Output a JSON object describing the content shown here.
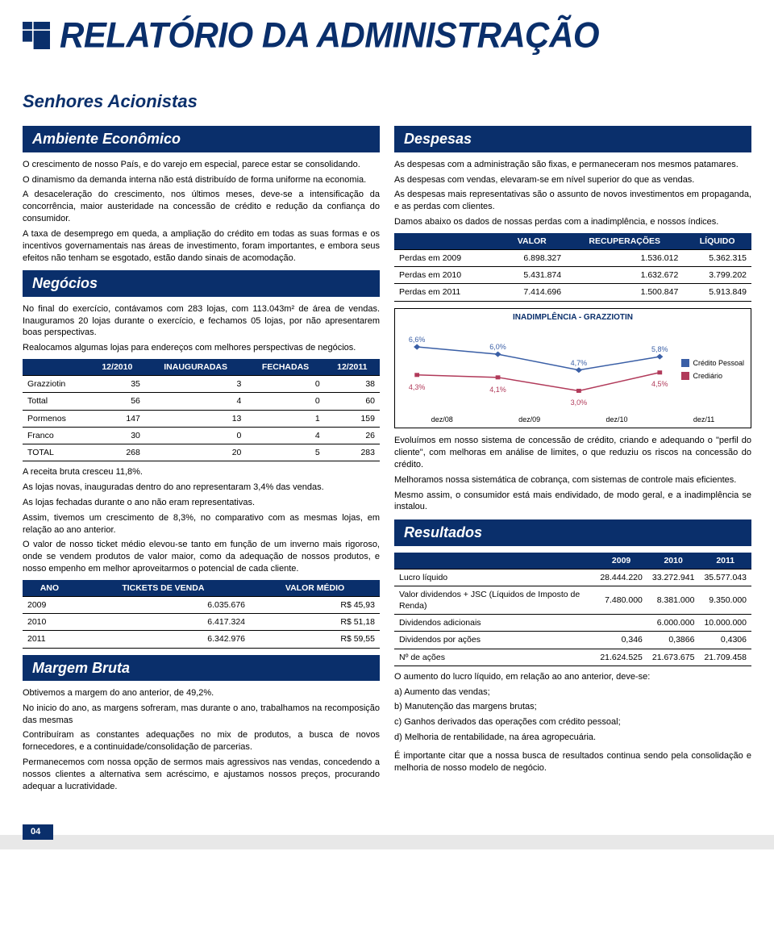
{
  "brand": {
    "accent": "#0a2f6b"
  },
  "title": "RELATÓRIO DA ADMINISTRAÇÃO",
  "subtitle": "Senhores Acionistas",
  "page_number": "04",
  "left": {
    "s1": {
      "heading": "Ambiente Econômico",
      "p1": "O crescimento de nosso País, e do varejo em especial, parece estar se consolidando.",
      "p2": "O dinamismo da demanda interna não está distribuído de forma uniforme na economia.",
      "p3": "A desaceleração do crescimento, nos últimos meses, deve-se a intensificação da concorrência, maior austeridade na concessão de crédito e redução da confiança do consumidor.",
      "p4": "A taxa de desemprego em queda, a ampliação do crédito em todas as suas formas e os incentivos governamentais nas áreas de investimento, foram importantes, e embora seus efeitos não tenham se esgotado, estão dando sinais de acomodação."
    },
    "s2": {
      "heading": "Negócios",
      "p1": "No final do exercício, contávamos com 283 lojas, com 113.043m² de área de vendas. Inauguramos 20 lojas durante o exercício, e fechamos 05 lojas, por não apresentarem boas perspectivas.",
      "p2": "Realocamos algumas lojas para endereços com melhores perspectivas de negócios.",
      "stores": {
        "columns": [
          "",
          "12/2010",
          "INAUGURADAS",
          "FECHADAS",
          "12/2011"
        ],
        "rows": [
          [
            "Grazziotin",
            "35",
            "3",
            "0",
            "38"
          ],
          [
            "Tottal",
            "56",
            "4",
            "0",
            "60"
          ],
          [
            "Pormenos",
            "147",
            "13",
            "1",
            "159"
          ],
          [
            "Franco",
            "30",
            "0",
            "4",
            "26"
          ],
          [
            "TOTAL",
            "268",
            "20",
            "5",
            "283"
          ]
        ]
      },
      "p3": "A receita bruta cresceu 11,8%.",
      "p4": "As lojas novas, inauguradas dentro do ano representaram 3,4% das vendas.",
      "p5": "As lojas fechadas durante o ano não eram representativas.",
      "p6": "Assim, tivemos um crescimento de 8,3%, no comparativo com as mesmas lojas, em relação ao ano anterior.",
      "p7": "O valor de nosso ticket médio elevou-se tanto em função de um inverno mais rigoroso, onde se vendem produtos de valor maior, como da adequação de nossos produtos, e nosso empenho em melhor aproveitarmos o potencial de cada cliente.",
      "tickets": {
        "columns": [
          "ANO",
          "TICKETS DE VENDA",
          "VALOR MÉDIO"
        ],
        "rows": [
          [
            "2009",
            "6.035.676",
            "R$ 45,93"
          ],
          [
            "2010",
            "6.417.324",
            "R$ 51,18"
          ],
          [
            "2011",
            "6.342.976",
            "R$ 59,55"
          ]
        ]
      }
    },
    "s3": {
      "heading": "Margem Bruta",
      "p1": "Obtivemos a margem do ano anterior, de 49,2%.",
      "p2": "No inicio do ano, as margens sofreram, mas durante o ano, trabalhamos na recomposição das mesmas",
      "p3": "Contribuíram as constantes adequações no mix de produtos, a busca de novos fornecedores, e a continuidade/consolidação de parcerias.",
      "p4": "Permanecemos com nossa opção de sermos mais agressivos nas vendas, concedendo a nossos clientes a alternativa sem acréscimo, e ajustamos nossos preços, procurando adequar a lucratividade."
    }
  },
  "right": {
    "s1": {
      "heading": "Despesas",
      "p1": "As despesas com a administração são fixas, e permaneceram nos mesmos patamares.",
      "p2": "As despesas com vendas, elevaram-se em nível superior do que as vendas.",
      "p3": "As despesas mais representativas são o assunto de novos investimentos em propaganda, e as perdas com clientes.",
      "p4": "Damos abaixo os dados de nossas perdas com a inadimplência, e nossos índices.",
      "losses": {
        "columns": [
          "",
          "VALOR",
          "RECUPERAÇÕES",
          "LÍQUIDO"
        ],
        "rows": [
          [
            "Perdas em 2009",
            "6.898.327",
            "1.536.012",
            "5.362.315"
          ],
          [
            "Perdas em 2010",
            "5.431.874",
            "1.632.672",
            "3.799.202"
          ],
          [
            "Perdas em 2011",
            "7.414.696",
            "1.500.847",
            "5.913.849"
          ]
        ]
      }
    },
    "chart": {
      "title": "INADIMPLÊNCIA - GRAZZIOTIN",
      "type": "line",
      "x_categories": [
        "dez/08",
        "dez/09",
        "dez/10",
        "dez/11"
      ],
      "series": [
        {
          "name": "Crédito Pessoal",
          "color": "#3a5fa6",
          "marker": "diamond",
          "values": [
            6.6,
            6.0,
            4.7,
            5.8
          ],
          "labels": [
            "6,6%",
            "6,0%",
            "4,7%",
            "5,8%"
          ]
        },
        {
          "name": "Crediário",
          "color": "#b13a5a",
          "marker": "square",
          "values": [
            4.3,
            4.1,
            3.0,
            4.5
          ],
          "labels": [
            "4,3%",
            "4,1%",
            "3,0%",
            "4,5%"
          ]
        }
      ],
      "ylim": [
        2.5,
        7.0
      ],
      "label_fontsize": 9,
      "title_fontsize": 10,
      "line_width": 1.5,
      "marker_size": 5,
      "background_color": "#ffffff",
      "border_color": "#000000"
    },
    "s2": {
      "p1": "Evoluímos em nosso sistema de concessão de crédito, criando e adequando o \"perfil do cliente\", com melhoras em análise de limites, o que reduziu os riscos na concessão do crédito.",
      "p2": "Melhoramos nossa sistemática de cobrança, com sistemas de controle mais eficientes.",
      "p3": "Mesmo assim, o consumidor está mais endividado, de modo geral, e a inadimplência se instalou.",
      "heading": "Resultados",
      "results": {
        "columns": [
          "",
          "2009",
          "2010",
          "2011"
        ],
        "rows": [
          [
            "Lucro líquido",
            "28.444.220",
            "33.272.941",
            "35.577.043"
          ],
          [
            "Valor dividendos + JSC (Líquidos de Imposto de Renda)",
            "7.480.000",
            "8.381.000",
            "9.350.000"
          ],
          [
            "Dividendos adicionais",
            "",
            "6.000.000",
            "10.000.000"
          ],
          [
            "Dividendos por ações",
            "0,346",
            "0,3866",
            "0,4306"
          ],
          [
            "Nº de ações",
            "21.624.525",
            "21.673.675",
            "21.709.458"
          ]
        ]
      },
      "p4": "O aumento do lucro líquido, em relação ao ano anterior, deve-se:",
      "la": "a) Aumento das vendas;",
      "lb": "b) Manutenção das margens brutas;",
      "lc": "c) Ganhos derivados das operações com crédito pessoal;",
      "ld": "d) Melhoria de rentabilidade, na área agropecuária.",
      "p5": "É importante citar que a nossa busca de resultados continua sendo pela consolidação e melhoria de nosso modelo de negócio."
    }
  }
}
